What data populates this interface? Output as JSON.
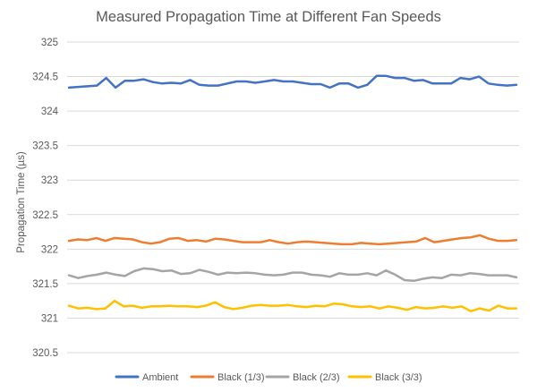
{
  "chart_data": {
    "type": "line",
    "title": "Measured Propagation Time at Different Fan Speeds",
    "xlabel": "",
    "ylabel": "Propagation Time (µs)",
    "ylim": [
      320.5,
      325
    ],
    "yticks": [
      "320.5",
      "321",
      "321.5",
      "322",
      "322.5",
      "323",
      "323.5",
      "324",
      "324.5",
      "325"
    ],
    "grid": true,
    "legend_position": "bottom",
    "series": [
      {
        "name": "Ambient",
        "color": "#4472c4",
        "values": [
          324.34,
          324.35,
          324.36,
          324.37,
          324.48,
          324.34,
          324.44,
          324.44,
          324.46,
          324.42,
          324.4,
          324.41,
          324.4,
          324.45,
          324.38,
          324.37,
          324.37,
          324.4,
          324.43,
          324.43,
          324.41,
          324.43,
          324.45,
          324.43,
          324.43,
          324.41,
          324.39,
          324.39,
          324.34,
          324.4,
          324.4,
          324.34,
          324.38,
          324.51,
          324.51,
          324.48,
          324.48,
          324.44,
          324.45,
          324.4,
          324.4,
          324.4,
          324.48,
          324.46,
          324.5,
          324.4,
          324.38,
          324.37,
          324.38
        ]
      },
      {
        "name": "Black (1/3)",
        "color": "#ed7d31",
        "values": [
          322.12,
          322.14,
          322.13,
          322.16,
          322.12,
          322.16,
          322.15,
          322.14,
          322.1,
          322.08,
          322.1,
          322.15,
          322.16,
          322.12,
          322.13,
          322.11,
          322.15,
          322.14,
          322.12,
          322.1,
          322.1,
          322.1,
          322.13,
          322.1,
          322.08,
          322.1,
          322.11,
          322.1,
          322.09,
          322.08,
          322.07,
          322.07,
          322.09,
          322.08,
          322.07,
          322.08,
          322.09,
          322.1,
          322.11,
          322.16,
          322.1,
          322.12,
          322.14,
          322.16,
          322.17,
          322.2,
          322.15,
          322.12,
          322.12,
          322.13
        ]
      },
      {
        "name": "Black (2/3)",
        "color": "#a5a5a5",
        "values": [
          321.62,
          321.58,
          321.61,
          321.63,
          321.66,
          321.63,
          321.61,
          321.68,
          321.72,
          321.71,
          321.68,
          321.69,
          321.64,
          321.65,
          321.7,
          321.67,
          321.63,
          321.66,
          321.65,
          321.66,
          321.65,
          321.63,
          321.62,
          321.63,
          321.66,
          321.66,
          321.63,
          321.62,
          321.6,
          321.65,
          321.63,
          321.63,
          321.65,
          321.62,
          321.69,
          321.63,
          321.55,
          321.54,
          321.57,
          321.59,
          321.58,
          321.63,
          321.62,
          321.65,
          321.64,
          321.62,
          321.62,
          321.62,
          321.59
        ]
      },
      {
        "name": "Black (3/3)",
        "color": "#ffc000",
        "values": [
          321.18,
          321.14,
          321.15,
          321.13,
          321.14,
          321.25,
          321.17,
          321.18,
          321.15,
          321.17,
          321.17,
          321.18,
          321.17,
          321.17,
          321.16,
          321.18,
          321.23,
          321.16,
          321.13,
          321.15,
          321.18,
          321.19,
          321.18,
          321.18,
          321.19,
          321.17,
          321.16,
          321.18,
          321.17,
          321.21,
          321.2,
          321.17,
          321.16,
          321.17,
          321.14,
          321.17,
          321.15,
          321.12,
          321.16,
          321.14,
          321.15,
          321.17,
          321.15,
          321.17,
          321.1,
          321.14,
          321.11,
          321.18,
          321.14,
          321.14
        ]
      }
    ]
  }
}
